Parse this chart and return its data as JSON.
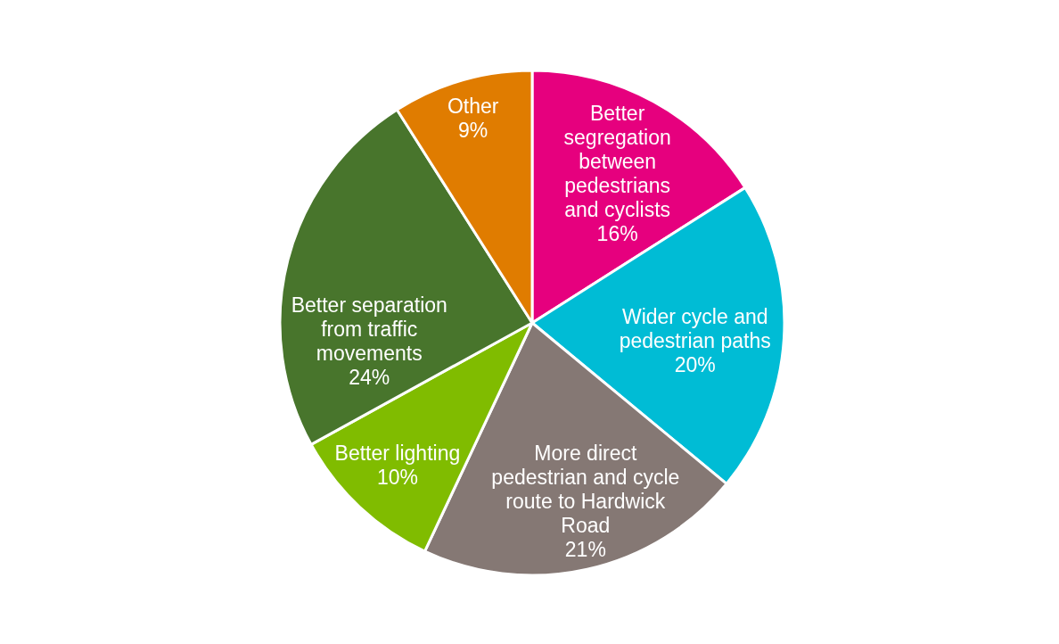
{
  "chart_data": {
    "type": "pie",
    "categories": [
      "Better segregation between pedestrians and cyclists",
      "Wider cycle and pedestrian paths",
      "More direct pedestrian and cycle route to Hardwick Road",
      "Better lighting",
      "Better separation from traffic movements",
      "Other"
    ],
    "values": [
      16,
      20,
      21,
      10,
      24,
      9
    ],
    "colors": [
      "#e6007e",
      "#00bcd5",
      "#857874",
      "#80bc00",
      "#48752c",
      "#e07c00"
    ],
    "value_labels": [
      "16%",
      "20%",
      "21%",
      "10%",
      "24%",
      "9%"
    ]
  }
}
